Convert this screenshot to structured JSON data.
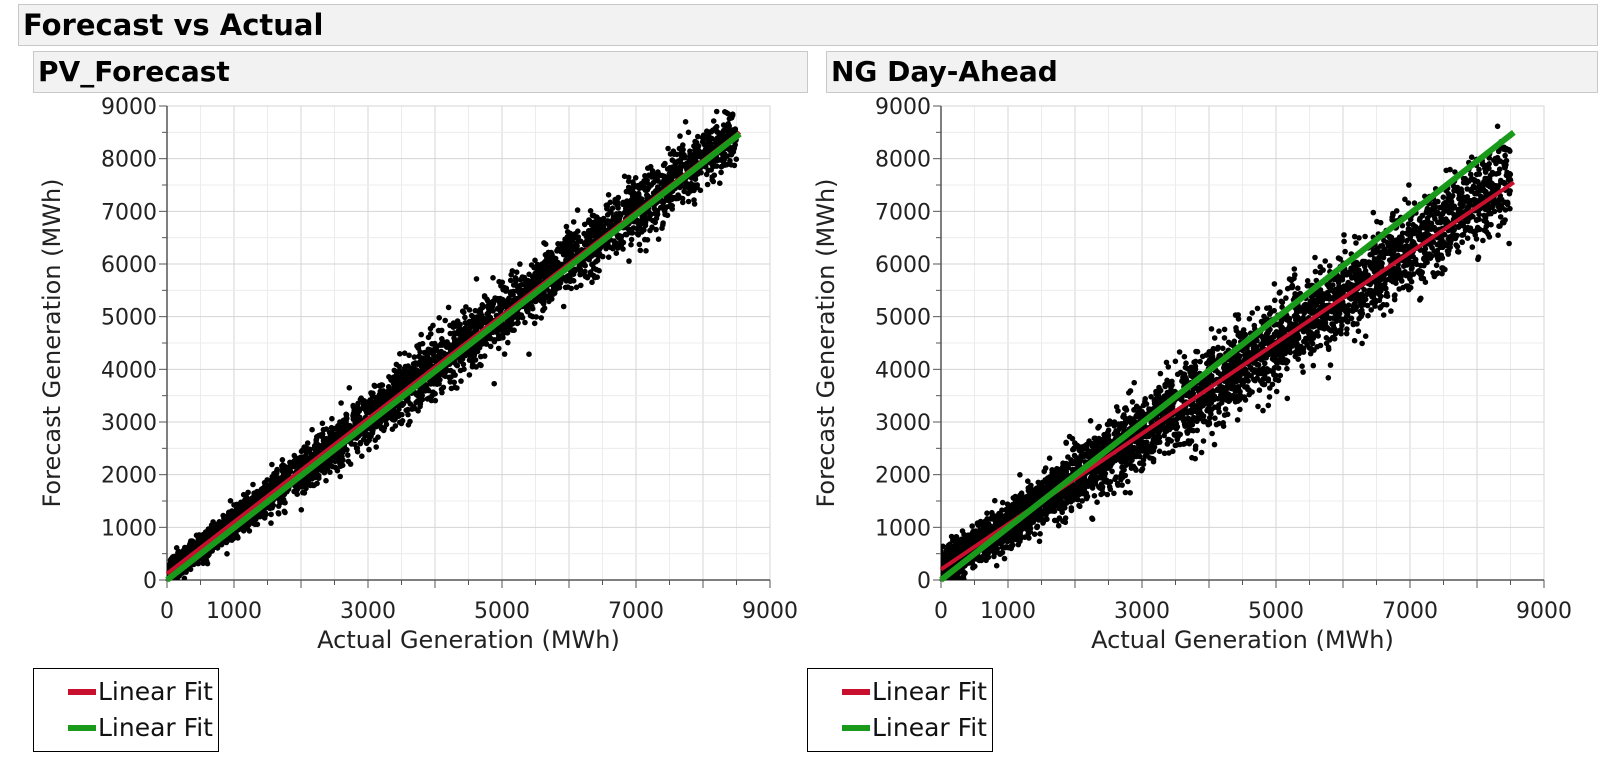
{
  "report": {
    "title": "Forecast vs Actual"
  },
  "colors": {
    "fit_red": "#c8102e",
    "fit_green": "#1a9a1a",
    "points": "#000000",
    "grid_major": "#d4d4d4",
    "grid_minor": "#ececec"
  },
  "chart_data": [
    {
      "type": "scatter",
      "title": "PV_Forecast",
      "xlabel": "Actual Generation (MWh)",
      "ylabel": "Forecast Generation (MWh)",
      "xlim": [
        0,
        9000
      ],
      "ylim": [
        0,
        9000
      ],
      "xticks": [
        0,
        1000,
        3000,
        5000,
        7000,
        9000
      ],
      "yticks": [
        0,
        1000,
        2000,
        3000,
        4000,
        5000,
        6000,
        7000,
        8000,
        9000
      ],
      "grid": true,
      "point_model": {
        "n": 4200,
        "x_max": 8500,
        "slope": 0.99,
        "intercept": 100,
        "noise": 480
      },
      "series": [
        {
          "name": "Linear Fit",
          "kind": "line",
          "color": "#c8102e",
          "x": [
            0,
            8550
          ],
          "y": [
            120,
            8500
          ]
        },
        {
          "name": "Linear Fit",
          "kind": "line",
          "color": "#1a9a1a",
          "x": [
            0,
            8550
          ],
          "y": [
            0,
            8470
          ]
        }
      ],
      "legend": {
        "position": "bottom-left",
        "entries": [
          "Linear Fit",
          "Linear Fit"
        ]
      }
    },
    {
      "type": "scatter",
      "title": "NG Day-Ahead",
      "xlabel": "Actual Generation (MWh)",
      "ylabel": "Forecast Generation (MWh)",
      "xlim": [
        0,
        9000
      ],
      "ylim": [
        0,
        9000
      ],
      "xticks": [
        0,
        1000,
        3000,
        5000,
        7000,
        9000
      ],
      "yticks": [
        0,
        1000,
        2000,
        3000,
        4000,
        5000,
        6000,
        7000,
        8000,
        9000
      ],
      "grid": true,
      "point_model": {
        "n": 4600,
        "x_max": 8500,
        "slope": 0.87,
        "intercept": 200,
        "noise": 700
      },
      "series": [
        {
          "name": "Linear Fit",
          "kind": "line",
          "color": "#c8102e",
          "x": [
            0,
            8550
          ],
          "y": [
            200,
            7550
          ]
        },
        {
          "name": "Linear Fit",
          "kind": "line",
          "color": "#1a9a1a",
          "x": [
            0,
            8550
          ],
          "y": [
            0,
            8500
          ]
        }
      ],
      "legend": {
        "position": "bottom-left",
        "entries": [
          "Linear Fit",
          "Linear Fit"
        ]
      }
    }
  ]
}
